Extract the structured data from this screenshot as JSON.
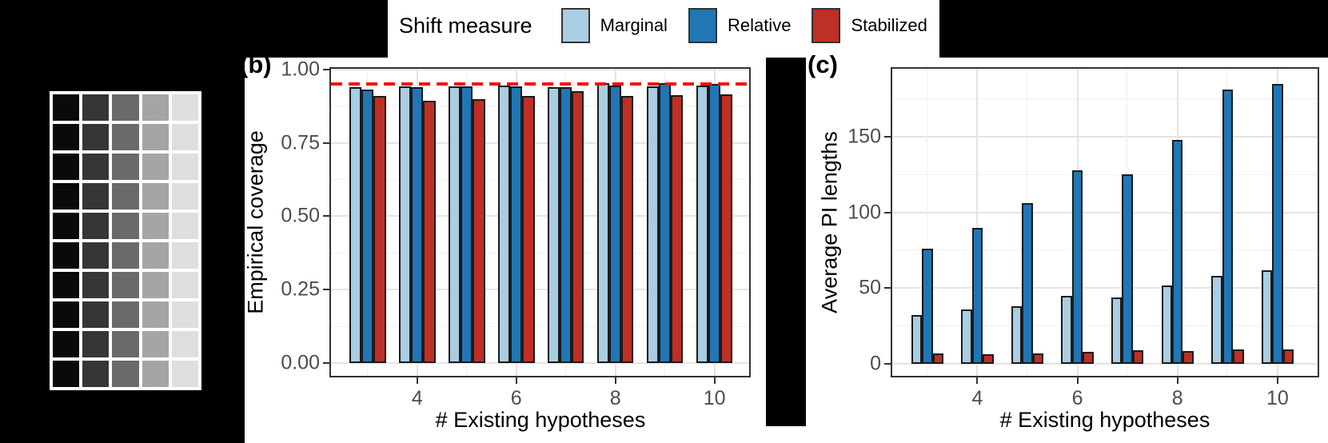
{
  "legend": {
    "title": "Shift measure",
    "items": [
      {
        "label": "Marginal",
        "color": "#A9CDE2"
      },
      {
        "label": "Relative",
        "color": "#2176B4"
      },
      {
        "label": "Stabilized",
        "color": "#BE2F26"
      }
    ]
  },
  "grayscale_grid": {
    "rows": 10,
    "columns": 5,
    "column_colors": [
      "#0A0A0A",
      "#363636",
      "#6A6A6A",
      "#A5A5A5",
      "#DEDEDE"
    ]
  },
  "chart_data": [
    {
      "id": "b",
      "panel_label": "(b)",
      "type": "bar",
      "title": "",
      "xlabel": "# Existing hypotheses",
      "ylabel": "Empirical coverage",
      "categories": [
        3,
        4,
        5,
        6,
        7,
        8,
        9,
        10
      ],
      "series": [
        {
          "name": "Marginal",
          "color": "#A9CDE2",
          "values": [
            0.94,
            0.943,
            0.943,
            0.947,
            0.939,
            0.953,
            0.944,
            0.947
          ]
        },
        {
          "name": "Relative",
          "color": "#2176B4",
          "values": [
            0.931,
            0.941,
            0.942,
            0.944,
            0.94,
            0.945,
            0.953,
            0.952
          ]
        },
        {
          "name": "Stabilized",
          "color": "#BE2F26",
          "values": [
            0.909,
            0.893,
            0.899,
            0.911,
            0.928,
            0.91,
            0.912,
            0.917
          ]
        }
      ],
      "x_ticks": {
        "values": [
          4,
          6,
          8,
          10
        ],
        "labels": [
          "4",
          "6",
          "8",
          "10"
        ]
      },
      "y_ticks": {
        "values": [
          0,
          0.25,
          0.5,
          0.75,
          1
        ],
        "labels": [
          "0.00",
          "0.25",
          "0.50",
          "0.75",
          "1.00"
        ]
      },
      "xlim": [
        2.26,
        10.7
      ],
      "ylim": [
        -0.044,
        1.003
      ],
      "bar_width": 0.245,
      "grid": true,
      "legend_position": "top-shared",
      "reference_line": {
        "value": 0.95,
        "color": "#FB0D0D",
        "style": "dashed"
      }
    },
    {
      "id": "c",
      "panel_label": "(c)",
      "type": "bar",
      "title": "",
      "xlabel": "# Existing hypotheses",
      "ylabel": "Average PI lengths",
      "categories": [
        3,
        4,
        5,
        6,
        7,
        8,
        9,
        10
      ],
      "series": [
        {
          "name": "Marginal",
          "color": "#A9CDE2",
          "values": [
            32,
            36,
            38,
            45,
            44,
            52,
            58,
            62
          ]
        },
        {
          "name": "Relative",
          "color": "#2176B4",
          "values": [
            76,
            90,
            106,
            128,
            125,
            148,
            181,
            185
          ]
        },
        {
          "name": "Stabilized",
          "color": "#BE2F26",
          "values": [
            7,
            6.5,
            7,
            8,
            9,
            8.5,
            9.5,
            9.5
          ]
        }
      ],
      "x_ticks": {
        "values": [
          4,
          6,
          8,
          10
        ],
        "labels": [
          "4",
          "6",
          "8",
          "10"
        ]
      },
      "y_ticks": {
        "values": [
          0,
          50,
          100,
          150
        ],
        "labels": [
          "0",
          "50",
          "100",
          "150"
        ]
      },
      "xlim": [
        2.3,
        10.8
      ],
      "ylim": [
        -8,
        195
      ],
      "bar_width": 0.215,
      "grid": true,
      "legend_position": "top-shared",
      "reference_line": null
    }
  ]
}
